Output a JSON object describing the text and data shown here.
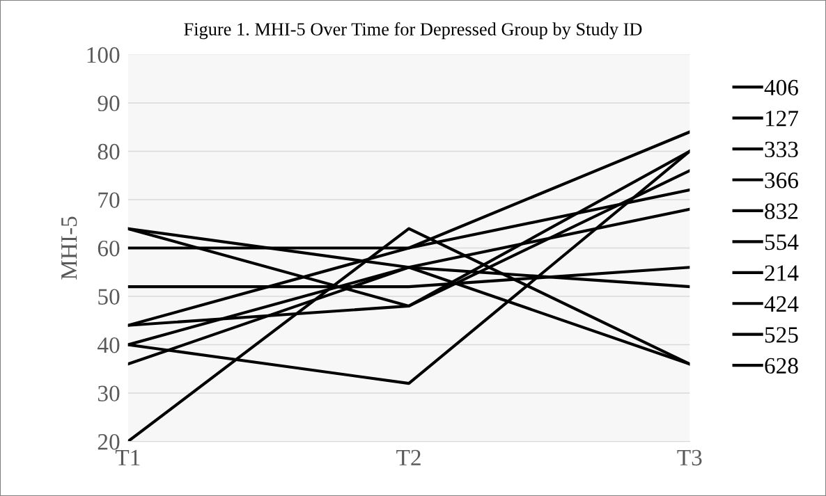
{
  "chart_data": {
    "type": "line",
    "title": "Figure 1. MHI-5 Over Time for Depressed Group by Study ID",
    "ylabel": "MHI-5",
    "categories": [
      "T1",
      "T2",
      "T3"
    ],
    "series": [
      {
        "name": "406",
        "color": "#000000",
        "values": [
          64,
          48,
          80
        ]
      },
      {
        "name": "127",
        "color": "#000000",
        "values": [
          64,
          56,
          36
        ]
      },
      {
        "name": "333",
        "color": "#000000",
        "values": [
          60,
          60,
          84
        ]
      },
      {
        "name": "366",
        "color": "#000000",
        "values": [
          52,
          52,
          56
        ]
      },
      {
        "name": "832",
        "color": "#000000",
        "values": [
          44,
          60,
          72
        ]
      },
      {
        "name": "554",
        "color": "#000000",
        "values": [
          44,
          48,
          76
        ]
      },
      {
        "name": "214",
        "color": "#000000",
        "values": [
          40,
          56,
          52
        ]
      },
      {
        "name": "424",
        "color": "#000000",
        "values": [
          40,
          32,
          80
        ]
      },
      {
        "name": "525",
        "color": "#000000",
        "values": [
          36,
          56,
          68
        ]
      },
      {
        "name": "628",
        "color": "#000000",
        "values": [
          20,
          64,
          36
        ]
      }
    ],
    "ylim": [
      20,
      100
    ],
    "yticks": [
      20,
      30,
      40,
      50,
      60,
      70,
      80,
      90,
      100
    ],
    "grid": "y",
    "legend": "right",
    "marker": "none",
    "line_style": "solid"
  }
}
